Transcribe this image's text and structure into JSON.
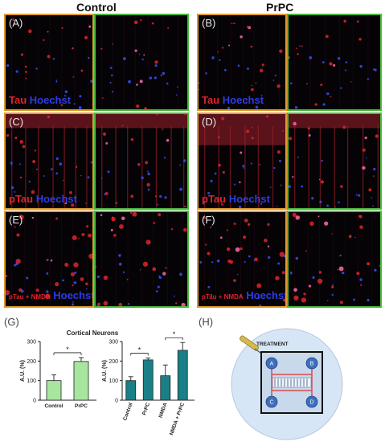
{
  "column_titles": {
    "left": "Control",
    "right": "PrPC"
  },
  "panels": [
    {
      "id": "A",
      "label": "(A)",
      "stain_red": "Tau",
      "stain_blue": "Hoechst"
    },
    {
      "id": "B",
      "label": "(B)",
      "stain_red": "Tau",
      "stain_blue": "Hoechst"
    },
    {
      "id": "C",
      "label": "(C)",
      "stain_red": "pTau",
      "stain_blue": "Hoechst"
    },
    {
      "id": "D",
      "label": "(D)",
      "stain_red": "pTau",
      "stain_blue": "Hoechst"
    },
    {
      "id": "E",
      "label": "(E)",
      "stain_red": "pTau + NMDA",
      "stain_blue": "Hoechst"
    },
    {
      "id": "F",
      "label": "(F)",
      "stain_red": "pTau + NMDA",
      "stain_blue": "Hoechst"
    }
  ],
  "panel_g_label": "(G)",
  "panel_h_label": "(H)",
  "chart_title": "Cortical Neurons",
  "colors": {
    "bar_left": "#a8e6a0",
    "bar_right": "#1a7f86",
    "frame_orange": "#e09a2c",
    "frame_green": "#49b83a",
    "red_stain": "#e0242a",
    "blue_stain": "#2d3ce8",
    "circle_bg": "#d7e6f7",
    "well": "#3d6fc0"
  },
  "chart_data": [
    {
      "type": "bar",
      "title": "",
      "categories": [
        "Control",
        "PrPC"
      ],
      "values": [
        100,
        198
      ],
      "errors": [
        30,
        20
      ],
      "ylabel": "A.U. (%)",
      "ylim": [
        0,
        300
      ],
      "yticks": [
        0,
        100,
        200,
        300
      ],
      "significance": [
        {
          "between": [
            "Control",
            "PrPC"
          ],
          "label": "*"
        }
      ]
    },
    {
      "type": "bar",
      "title": "",
      "categories": [
        "Control",
        "PrPC",
        "NMDA",
        "NMDA + PrPC"
      ],
      "values": [
        100,
        206,
        125,
        255
      ],
      "errors": [
        20,
        10,
        55,
        40
      ],
      "ylabel": "A.U. (%)",
      "ylim": [
        0,
        300
      ],
      "yticks": [
        0,
        100,
        200,
        300
      ],
      "significance": [
        {
          "between": [
            "Control",
            "PrPC"
          ],
          "label": "*"
        },
        {
          "between": [
            "NMDA",
            "NMDA + PrPC"
          ],
          "label": "*"
        }
      ]
    }
  ],
  "diagram": {
    "treatment_label": "TREATMENT",
    "wells": [
      "A",
      "B",
      "C",
      "D"
    ]
  }
}
